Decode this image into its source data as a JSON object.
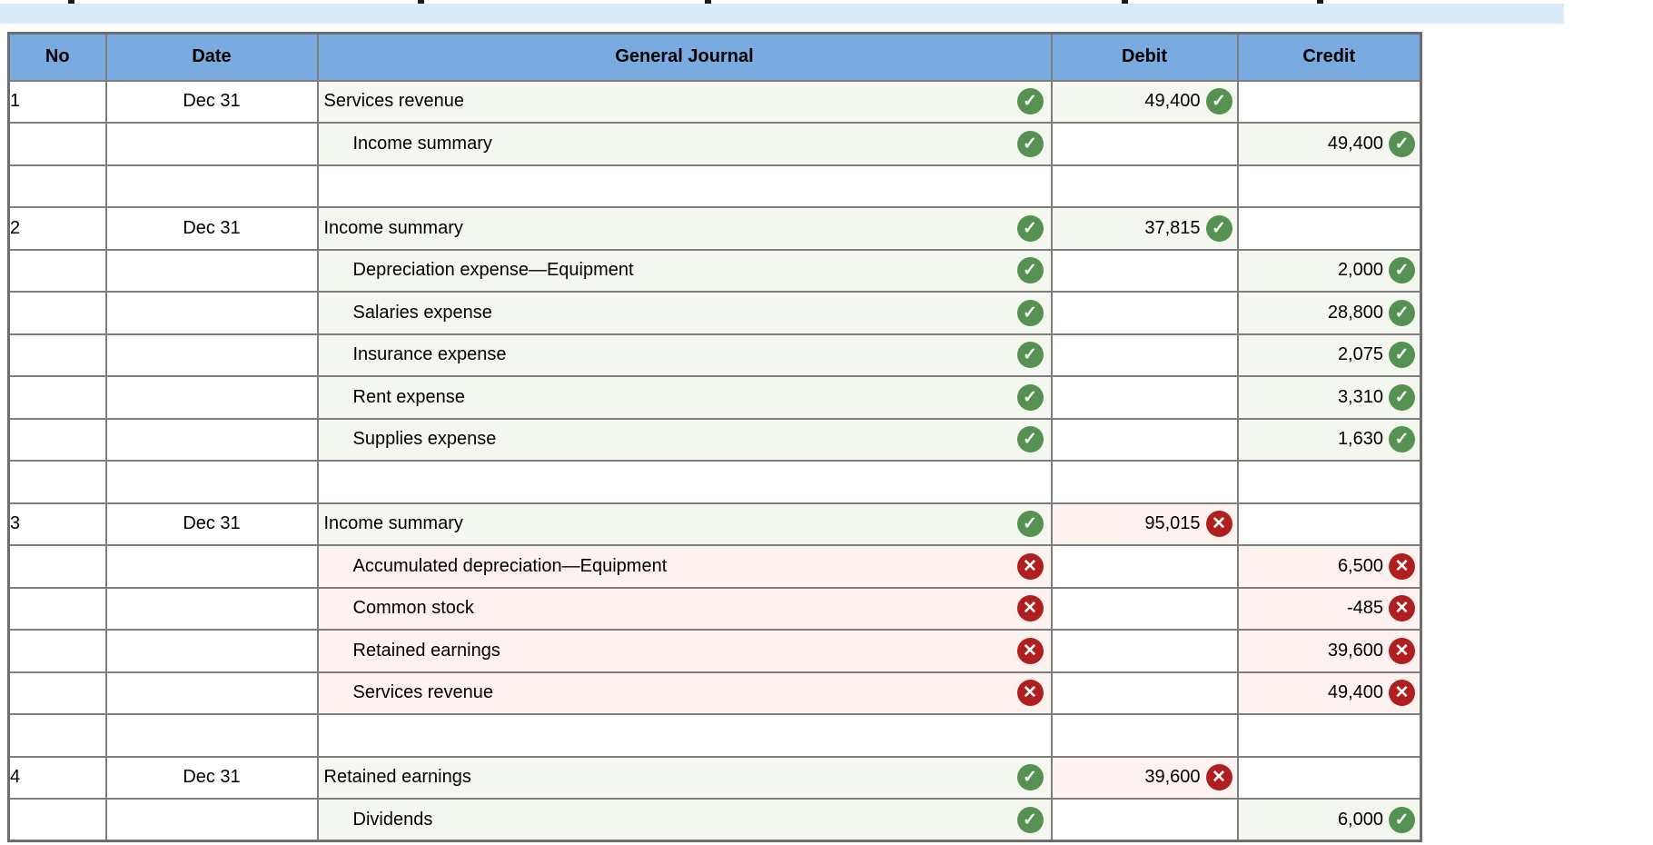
{
  "colors": {
    "header_bg": "#7aabe0",
    "info_bar_bg": "#d9eaf8",
    "correct_green": "#559150",
    "incorrect_red": "#b01f1f",
    "correct_cell_tint": "#f4f7f0",
    "incorrect_cell_tint": "#fdf2f0",
    "grid_border": "#7e7e7e"
  },
  "icons": {
    "ok": {
      "name": "check-icon",
      "glyph": "✓"
    },
    "error": {
      "name": "x-icon",
      "glyph": "✕"
    }
  },
  "table": {
    "columns": [
      "No",
      "Date",
      "General Journal",
      "Debit",
      "Credit"
    ],
    "rows": [
      {
        "no": "1",
        "date": "Dec 31",
        "account": "Services revenue",
        "indent": false,
        "account_status": "ok",
        "debit": "49,400",
        "debit_status": "ok",
        "credit": "",
        "credit_status": ""
      },
      {
        "no": "",
        "date": "",
        "account": "Income summary",
        "indent": true,
        "account_status": "ok",
        "debit": "",
        "debit_status": "",
        "credit": "49,400",
        "credit_status": "ok"
      },
      {
        "no": "",
        "date": "",
        "account": "",
        "indent": false,
        "account_status": "",
        "debit": "",
        "debit_status": "",
        "credit": "",
        "credit_status": ""
      },
      {
        "no": "2",
        "date": "Dec 31",
        "account": "Income summary",
        "indent": false,
        "account_status": "ok",
        "debit": "37,815",
        "debit_status": "ok",
        "credit": "",
        "credit_status": ""
      },
      {
        "no": "",
        "date": "",
        "account": "Depreciation expense—Equipment",
        "indent": true,
        "account_status": "ok",
        "debit": "",
        "debit_status": "",
        "credit": "2,000",
        "credit_status": "ok"
      },
      {
        "no": "",
        "date": "",
        "account": "Salaries expense",
        "indent": true,
        "account_status": "ok",
        "debit": "",
        "debit_status": "",
        "credit": "28,800",
        "credit_status": "ok"
      },
      {
        "no": "",
        "date": "",
        "account": "Insurance expense",
        "indent": true,
        "account_status": "ok",
        "debit": "",
        "debit_status": "",
        "credit": "2,075",
        "credit_status": "ok"
      },
      {
        "no": "",
        "date": "",
        "account": "Rent expense",
        "indent": true,
        "account_status": "ok",
        "debit": "",
        "debit_status": "",
        "credit": "3,310",
        "credit_status": "ok"
      },
      {
        "no": "",
        "date": "",
        "account": "Supplies expense",
        "indent": true,
        "account_status": "ok",
        "debit": "",
        "debit_status": "",
        "credit": "1,630",
        "credit_status": "ok"
      },
      {
        "no": "",
        "date": "",
        "account": "",
        "indent": false,
        "account_status": "",
        "debit": "",
        "debit_status": "",
        "credit": "",
        "credit_status": ""
      },
      {
        "no": "3",
        "date": "Dec 31",
        "account": "Income summary",
        "indent": false,
        "account_status": "ok",
        "debit": "95,015",
        "debit_status": "error",
        "credit": "",
        "credit_status": ""
      },
      {
        "no": "",
        "date": "",
        "account": "Accumulated depreciation—Equipment",
        "indent": true,
        "account_status": "error",
        "debit": "",
        "debit_status": "",
        "credit": "6,500",
        "credit_status": "error"
      },
      {
        "no": "",
        "date": "",
        "account": "Common stock",
        "indent": true,
        "account_status": "error",
        "debit": "",
        "debit_status": "",
        "credit": "-485",
        "credit_status": "error"
      },
      {
        "no": "",
        "date": "",
        "account": "Retained earnings",
        "indent": true,
        "account_status": "error",
        "debit": "",
        "debit_status": "",
        "credit": "39,600",
        "credit_status": "error"
      },
      {
        "no": "",
        "date": "",
        "account": "Services revenue",
        "indent": true,
        "account_status": "error",
        "debit": "",
        "debit_status": "",
        "credit": "49,400",
        "credit_status": "error"
      },
      {
        "no": "",
        "date": "",
        "account": "",
        "indent": false,
        "account_status": "",
        "debit": "",
        "debit_status": "",
        "credit": "",
        "credit_status": ""
      },
      {
        "no": "4",
        "date": "Dec 31",
        "account": "Retained earnings",
        "indent": false,
        "account_status": "ok",
        "debit": "39,600",
        "debit_status": "error",
        "credit": "",
        "credit_status": ""
      },
      {
        "no": "",
        "date": "",
        "account": "Dividends",
        "indent": true,
        "account_status": "ok",
        "debit": "",
        "debit_status": "",
        "credit": "6,000",
        "credit_status": "ok"
      }
    ]
  }
}
